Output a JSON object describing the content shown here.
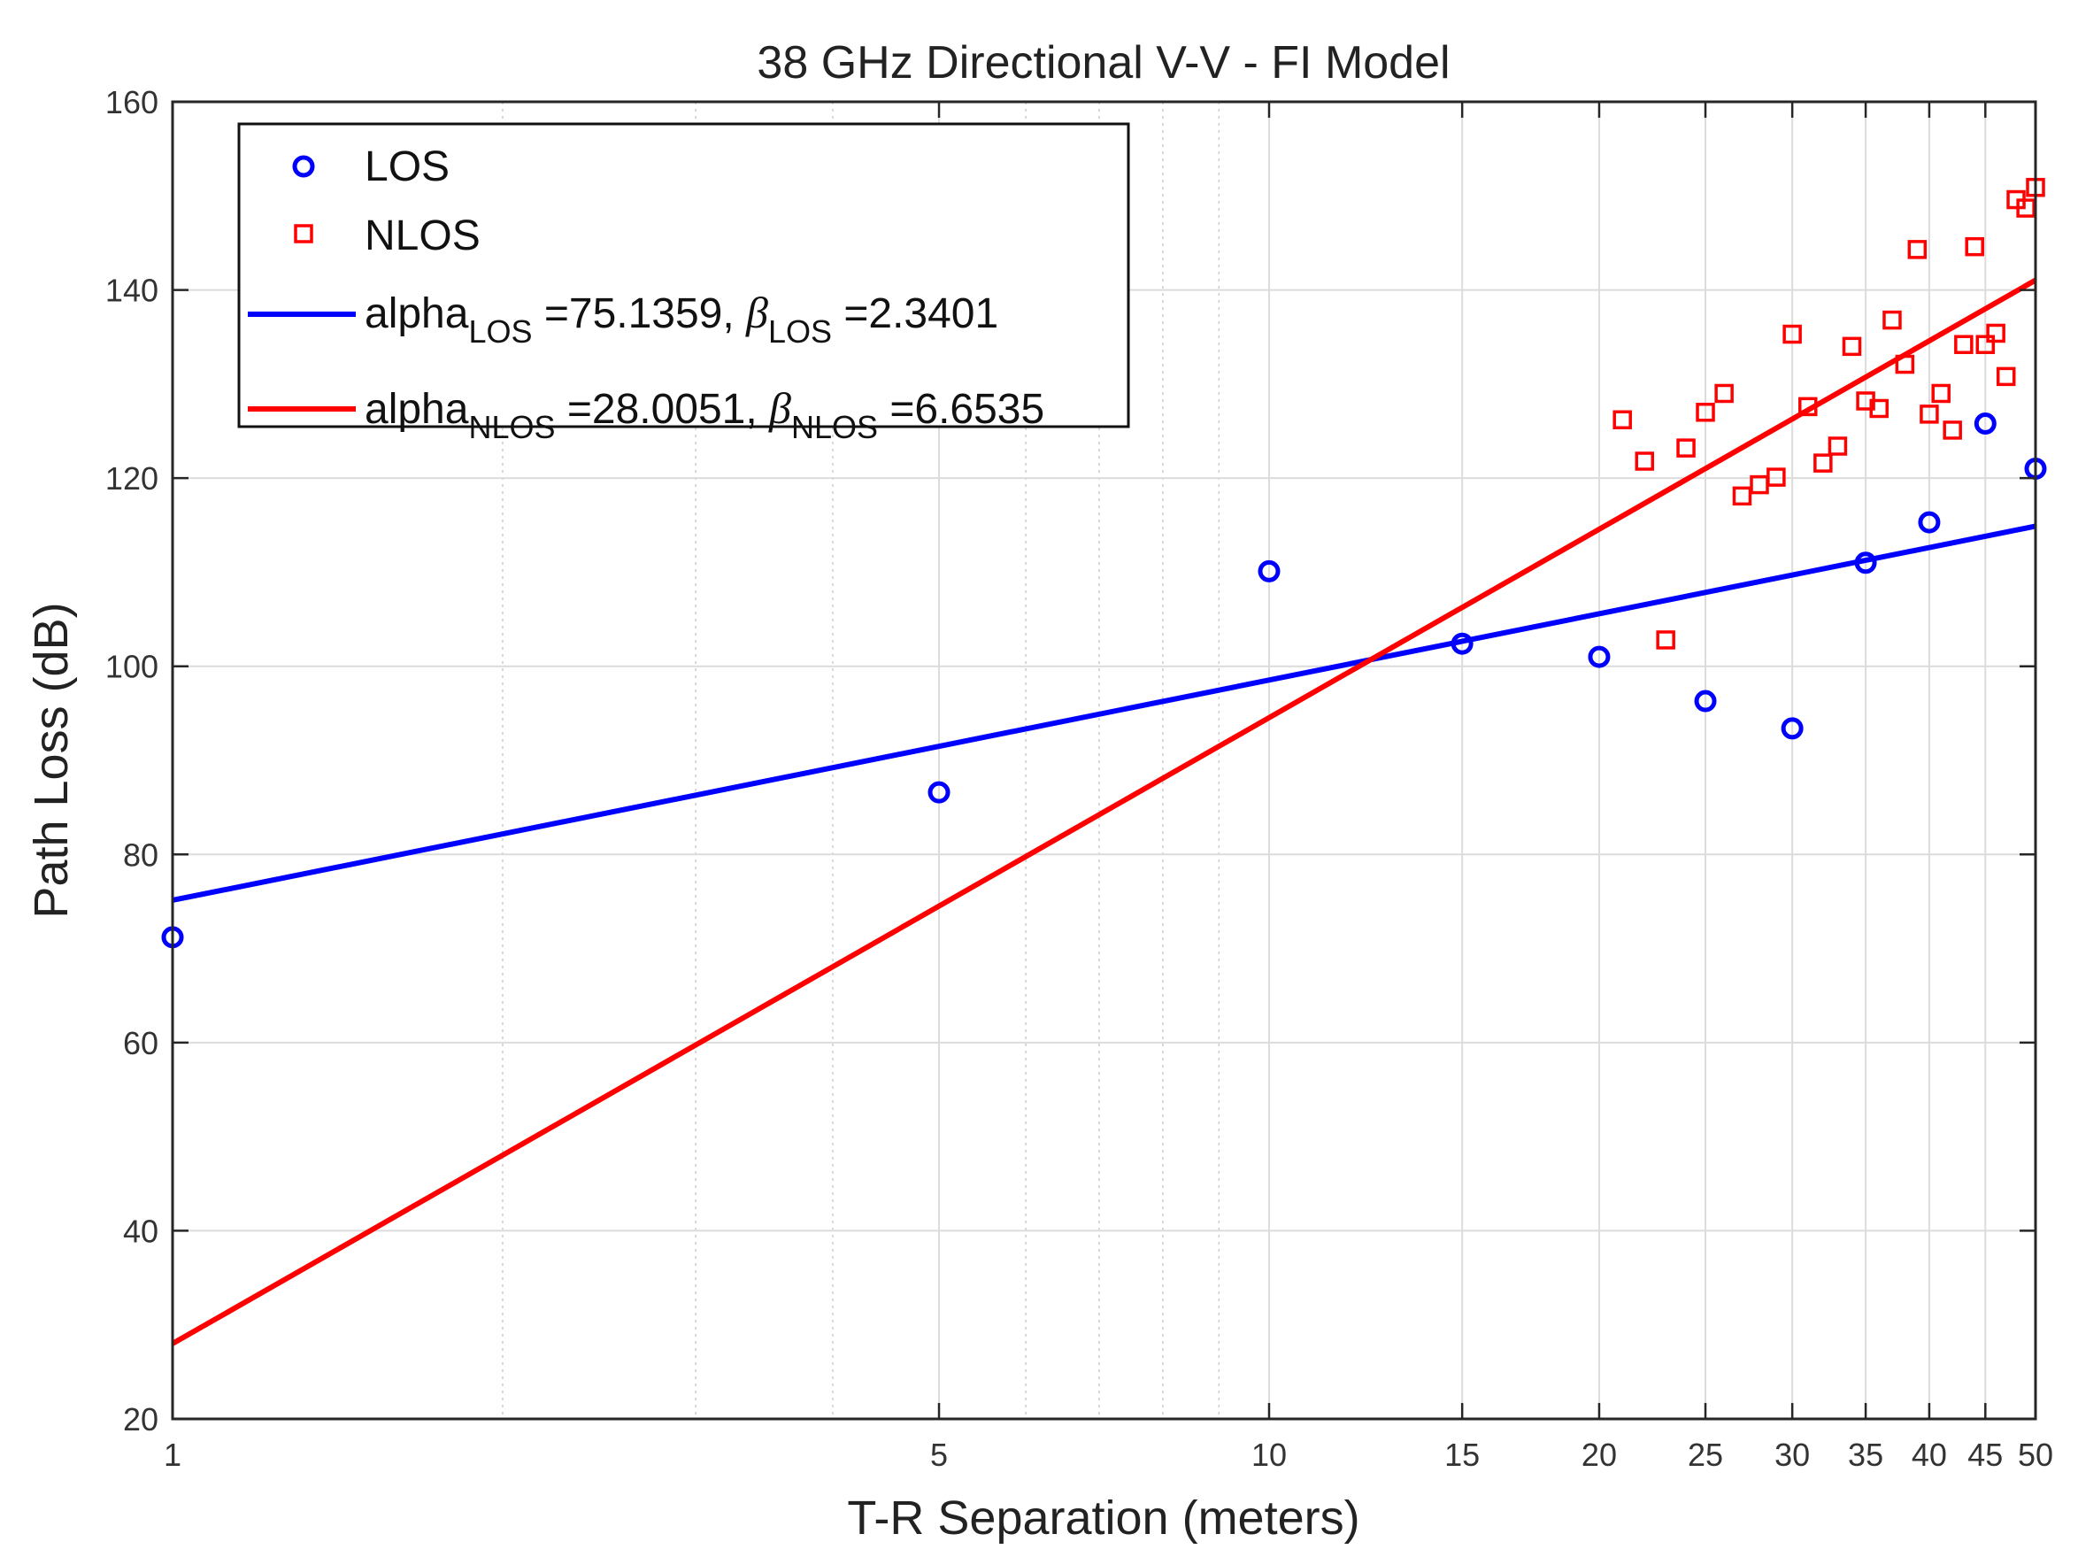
{
  "chart_data": {
    "type": "scatter",
    "title": "38 GHz Directional V-V - FI Model",
    "xlabel": "T-R Separation (meters)",
    "ylabel": "Path Loss (dB)",
    "xscale": "log",
    "xlim": [
      1,
      50
    ],
    "ylim": [
      20,
      160
    ],
    "grid": true,
    "x_tick_values": [
      1,
      5,
      10,
      15,
      20,
      25,
      30,
      35,
      40,
      45,
      50
    ],
    "x_tick_labels": [
      "1",
      "5",
      "10",
      "15",
      "20",
      "25",
      "30",
      "35",
      "40",
      "45",
      "50"
    ],
    "y_tick_values": [
      20,
      40,
      60,
      80,
      100,
      120,
      140,
      160
    ],
    "y_tick_labels": [
      "20",
      "40",
      "60",
      "80",
      "100",
      "120",
      "140",
      "160"
    ],
    "legend_position": "top-left",
    "series": [
      {
        "name": "LOS",
        "kind": "markers",
        "marker": "circle",
        "color": "#0000ff",
        "points": [
          [
            1,
            71.2
          ],
          [
            5,
            86.6
          ],
          [
            10,
            110.1
          ],
          [
            15,
            102.4
          ],
          [
            20,
            101.0
          ],
          [
            25,
            96.3
          ],
          [
            30,
            93.4
          ],
          [
            35,
            111.0
          ],
          [
            40,
            115.3
          ],
          [
            45,
            125.8
          ],
          [
            50,
            121.0
          ]
        ]
      },
      {
        "name": "NLOS",
        "kind": "markers",
        "marker": "square",
        "color": "#ff0000",
        "points": [
          [
            21,
            126.2
          ],
          [
            22,
            121.8
          ],
          [
            23,
            102.8
          ],
          [
            24,
            123.2
          ],
          [
            25,
            127.0
          ],
          [
            26,
            129.0
          ],
          [
            27,
            118.1
          ],
          [
            28,
            119.3
          ],
          [
            29,
            120.1
          ],
          [
            30,
            135.3
          ],
          [
            31,
            127.6
          ],
          [
            32,
            121.6
          ],
          [
            33,
            123.4
          ],
          [
            34,
            134.0
          ],
          [
            35,
            128.2
          ],
          [
            36,
            127.4
          ],
          [
            37,
            136.8
          ],
          [
            38,
            132.1
          ],
          [
            39,
            144.3
          ],
          [
            40,
            126.8
          ],
          [
            41,
            129.0
          ],
          [
            42,
            125.1
          ],
          [
            43,
            134.2
          ],
          [
            44,
            144.6
          ],
          [
            45,
            134.2
          ],
          [
            46,
            135.4
          ],
          [
            47,
            130.8
          ],
          [
            48,
            149.6
          ],
          [
            49,
            148.7
          ],
          [
            50,
            150.9
          ]
        ]
      },
      {
        "name": "alpha_LOS =75.1359, beta_LOS =2.3401",
        "kind": "line",
        "color": "#0000ff",
        "alpha": 75.1359,
        "beta": 2.3401,
        "x": [
          1,
          50
        ],
        "y": [
          75.1359,
          114.89
        ]
      },
      {
        "name": "alpha_NLOS =28.0051, beta_NLOS =6.6535",
        "kind": "line",
        "color": "#ff0000",
        "alpha": 28.0051,
        "beta": 6.6535,
        "x": [
          1,
          50
        ],
        "y": [
          28.0051,
          141.04
        ]
      }
    ],
    "legend": {
      "los_label": "LOS",
      "nlos_label": "NLOS",
      "fit_los": {
        "main": "alpha",
        "sub": "LOS",
        "eq1": " =75.1359, ",
        "greek": "β",
        "sub2": "LOS",
        "eq2": " =2.3401"
      },
      "fit_nlos": {
        "main": "alpha",
        "sub": "NLOS",
        "eq1": " =28.0051, ",
        "greek": "β",
        "sub2": "NLOS",
        "eq2": " =6.6535"
      }
    }
  }
}
